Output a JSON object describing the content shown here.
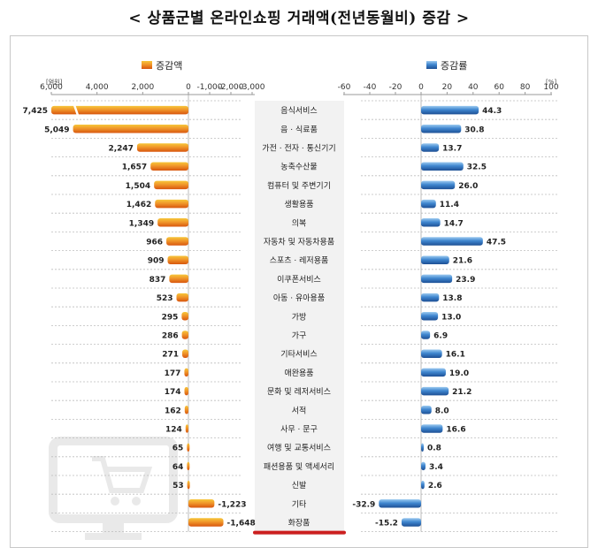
{
  "title": "< 상품군별 온라인쇼핑 거래액(전년동월비) 증감 >",
  "chart_data": [
    {
      "type": "bar",
      "orientation": "horizontal",
      "legend": "증감액",
      "unit": "[억원]",
      "xlim": [
        -3000,
        6000
      ],
      "ticks": [
        6000,
        4000,
        2000,
        0,
        -1000,
        -2000,
        -3000
      ],
      "tick_labels": [
        "6,000",
        "4,000",
        "2,000",
        "0",
        "-1,000",
        "-2,000",
        "-3,000"
      ],
      "categories": [
        "음식서비스",
        "음 · 식료품",
        "가전 · 전자 · 통신기기",
        "농축수산물",
        "컴퓨터 및 주변기기",
        "생활용품",
        "의복",
        "자동차 및 자동차용품",
        "스포츠 · 레저용품",
        "이쿠폰서비스",
        "아동 · 유아용품",
        "가방",
        "가구",
        "기타서비스",
        "애완용품",
        "문화 및 레저서비스",
        "서적",
        "사무 · 문구",
        "여행 및 교통서비스",
        "패션용품 및 액세서리",
        "신발",
        "기타",
        "화장품"
      ],
      "values": [
        7425,
        5049,
        2247,
        1657,
        1504,
        1462,
        1349,
        966,
        909,
        837,
        523,
        295,
        286,
        271,
        177,
        174,
        162,
        124,
        65,
        64,
        53,
        -1223,
        -1648
      ],
      "value_labels": [
        "7,425",
        "5,049",
        "2,247",
        "1,657",
        "1,504",
        "1,462",
        "1,349",
        "966",
        "909",
        "837",
        "523",
        "295",
        "286",
        "271",
        "177",
        "174",
        "162",
        "124",
        "65",
        "64",
        "53",
        "-1,223",
        "-1,648"
      ],
      "color": "#e8731c"
    },
    {
      "type": "bar",
      "orientation": "horizontal",
      "legend": "증감률",
      "unit": "[%]",
      "xlim": [
        -60,
        100
      ],
      "ticks": [
        -60,
        -40,
        -20,
        0,
        20,
        40,
        60,
        80,
        100
      ],
      "tick_labels": [
        "-60",
        "-40",
        "-20",
        "0",
        "20",
        "40",
        "60",
        "80",
        "100"
      ],
      "categories": [
        "음식서비스",
        "음 · 식료품",
        "가전 · 전자 · 통신기기",
        "농축수산물",
        "컴퓨터 및 주변기기",
        "생활용품",
        "의복",
        "자동차 및 자동차용품",
        "스포츠 · 레저용품",
        "이쿠폰서비스",
        "아동 · 유아용품",
        "가방",
        "가구",
        "기타서비스",
        "애완용품",
        "문화 및 레저서비스",
        "서적",
        "사무 · 문구",
        "여행 및 교통서비스",
        "패션용품 및 액세서리",
        "신발",
        "기타",
        "화장품"
      ],
      "values": [
        44.3,
        30.8,
        13.7,
        32.5,
        26.0,
        11.4,
        14.7,
        47.5,
        21.6,
        23.9,
        13.8,
        13.0,
        6.9,
        16.1,
        19.0,
        21.2,
        8.0,
        16.6,
        0.8,
        3.4,
        2.6,
        -32.9,
        -15.2
      ],
      "value_labels": [
        "44.3",
        "30.8",
        "13.7",
        "32.5",
        "26.0",
        "11.4",
        "14.7",
        "47.5",
        "21.6",
        "23.9",
        "13.8",
        "13.0",
        "6.9",
        "16.1",
        "19.0",
        "21.2",
        "8.0",
        "16.6",
        "0.8",
        "3.4",
        "2.6",
        "-32.9",
        "-15.2"
      ],
      "color": "#2f6fb5"
    }
  ],
  "colors": {
    "amount_bar": "#e8731c",
    "amount_light": "#f7c63a",
    "rate_bar": "#2f6fb5",
    "rate_light": "#9ccaf0",
    "highlight": "#cc1f1f",
    "grid": "#bdbdbd",
    "panel": "#f2f2f2"
  },
  "icons": {
    "watermark": "monitor-cart-icon"
  }
}
